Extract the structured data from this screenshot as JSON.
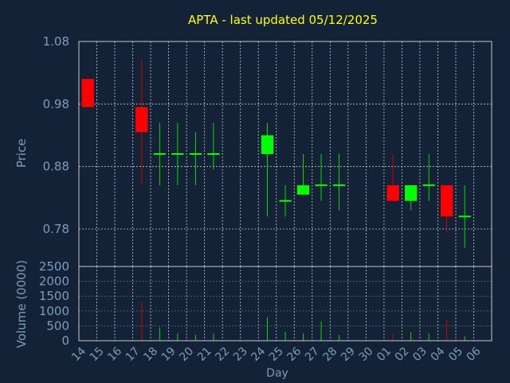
{
  "chart_data": {
    "type": "candlestick",
    "title": "APTA - last updated 05/12/2025",
    "xlabel": "Day",
    "ylabel": "Price",
    "volume_ylabel": "Volume (0000)",
    "ylim": [
      0.72,
      1.08
    ],
    "price_ticks": [
      "1.08",
      "0.98",
      "0.88",
      "0.78"
    ],
    "volume_ylim": [
      0,
      2500
    ],
    "volume_ticks": [
      "0",
      "500",
      "1000",
      "1500",
      "2000",
      "2500"
    ],
    "x_ticks": [
      "14",
      "15",
      "16",
      "17",
      "18",
      "19",
      "20",
      "21",
      "22",
      "23",
      "24",
      "25",
      "26",
      "27",
      "28",
      "29",
      "30",
      "01",
      "02",
      "03",
      "04",
      "05",
      "06"
    ],
    "grid": true,
    "colors": {
      "background": "#132236",
      "title": "#ffff00",
      "axis_text": "#7c9cbc",
      "grid": "#c8c8c8",
      "up": "#00ff00",
      "down": "#ff0000",
      "up_wick": "#00dd00",
      "down_wick": "#cc0000"
    },
    "candles": [
      {
        "day": "14",
        "open": 1.02,
        "high": 1.02,
        "low": 0.975,
        "close": 0.975,
        "volume": 0
      },
      {
        "day": "17",
        "open": 0.975,
        "high": 1.05,
        "low": 0.85,
        "close": 0.935,
        "volume": 1300
      },
      {
        "day": "18",
        "open": 0.9,
        "high": 0.95,
        "low": 0.85,
        "close": 0.9,
        "volume": 450
      },
      {
        "day": "19",
        "open": 0.9,
        "high": 0.95,
        "low": 0.85,
        "close": 0.9,
        "volume": 250
      },
      {
        "day": "20",
        "open": 0.9,
        "high": 0.935,
        "low": 0.85,
        "close": 0.9,
        "volume": 200
      },
      {
        "day": "21",
        "open": 0.9,
        "high": 0.95,
        "low": 0.875,
        "close": 0.9,
        "volume": 250
      },
      {
        "day": "24",
        "open": 0.9,
        "high": 0.95,
        "low": 0.8,
        "close": 0.93,
        "volume": 800
      },
      {
        "day": "25",
        "open": 0.825,
        "high": 0.85,
        "low": 0.8,
        "close": 0.825,
        "volume": 300
      },
      {
        "day": "26",
        "open": 0.835,
        "high": 0.9,
        "low": 0.835,
        "close": 0.85,
        "volume": 250
      },
      {
        "day": "27",
        "open": 0.85,
        "high": 0.9,
        "low": 0.825,
        "close": 0.85,
        "volume": 650
      },
      {
        "day": "28",
        "open": 0.85,
        "high": 0.9,
        "low": 0.81,
        "close": 0.85,
        "volume": 200
      },
      {
        "day": "01",
        "open": 0.85,
        "high": 0.9,
        "low": 0.825,
        "close": 0.825,
        "volume": 250
      },
      {
        "day": "02",
        "open": 0.825,
        "high": 0.85,
        "low": 0.81,
        "close": 0.85,
        "volume": 300
      },
      {
        "day": "03",
        "open": 0.85,
        "high": 0.9,
        "low": 0.825,
        "close": 0.85,
        "volume": 250
      },
      {
        "day": "04",
        "open": 0.85,
        "high": 0.85,
        "low": 0.775,
        "close": 0.8,
        "volume": 700
      },
      {
        "day": "05",
        "open": 0.8,
        "high": 0.85,
        "low": 0.75,
        "close": 0.8,
        "volume": 150
      }
    ]
  }
}
